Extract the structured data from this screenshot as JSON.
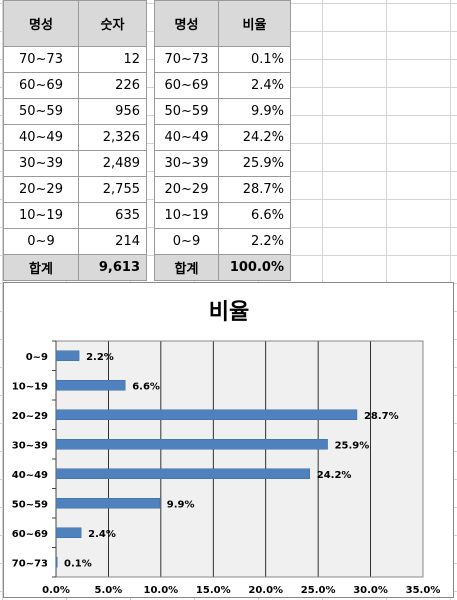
{
  "table_left": {
    "headers": [
      "명성",
      "숫자"
    ],
    "rows": [
      [
        "70~73",
        "12"
      ],
      [
        "60~69",
        "226"
      ],
      [
        "50~59",
        "956"
      ],
      [
        "40~49",
        "2,326"
      ],
      [
        "30~39",
        "2,489"
      ],
      [
        "20~29",
        "2,755"
      ],
      [
        "10~19",
        "635"
      ],
      [
        "0~9",
        "214"
      ]
    ],
    "total": [
      "합계",
      "9,613"
    ]
  },
  "table_right": {
    "headers": [
      "명성",
      "비율"
    ],
    "rows": [
      [
        "70~73",
        "0.1%"
      ],
      [
        "60~69",
        "2.4%"
      ],
      [
        "50~59",
        "9.9%"
      ],
      [
        "40~49",
        "24.2%"
      ],
      [
        "30~39",
        "25.9%"
      ],
      [
        "20~29",
        "28.7%"
      ],
      [
        "10~19",
        "6.6%"
      ],
      [
        "0~9",
        "2.2%"
      ]
    ],
    "total": [
      "합계",
      "100.0%"
    ]
  },
  "chart_data": {
    "type": "bar",
    "orientation": "horizontal",
    "title": "비율",
    "categories": [
      "0~9",
      "10~19",
      "20~29",
      "30~39",
      "40~49",
      "50~59",
      "60~69",
      "70~73"
    ],
    "values": [
      2.2,
      6.6,
      28.7,
      25.9,
      24.2,
      9.9,
      2.4,
      0.1
    ],
    "value_labels": [
      "2.2%",
      "6.6%",
      "28.7%",
      "25.9%",
      "24.2%",
      "9.9%",
      "2.4%",
      "0.1%"
    ],
    "xlim": [
      0,
      35
    ],
    "xticks": [
      0,
      5,
      10,
      15,
      20,
      25,
      30,
      35
    ],
    "xtick_labels": [
      "0.0%",
      "5.0%",
      "10.0%",
      "15.0%",
      "20.0%",
      "25.0%",
      "30.0%",
      "35.0%"
    ],
    "grid": true,
    "legend": "none",
    "bar_color": "#4f81bd",
    "plot_bg": "#f0f0f0"
  }
}
